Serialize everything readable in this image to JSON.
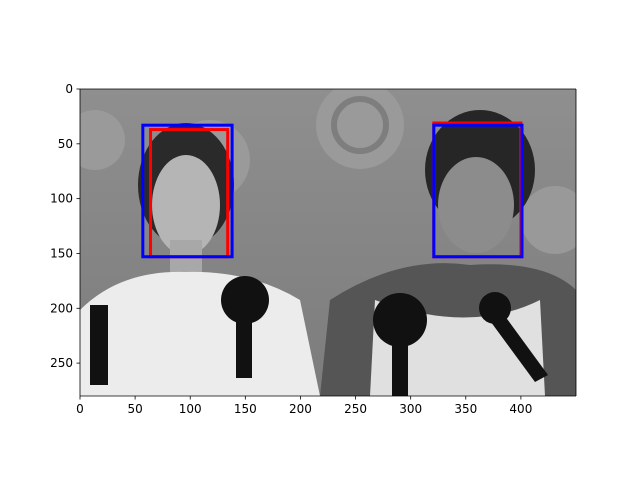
{
  "chart_data": {
    "type": "image",
    "title": "",
    "xlabel": "",
    "ylabel": "",
    "xlim": [
      0,
      450
    ],
    "ylim": [
      280,
      0
    ],
    "xticks": [
      0,
      50,
      100,
      150,
      200,
      250,
      300,
      350,
      400
    ],
    "yticks": [
      0,
      50,
      100,
      150,
      200,
      250
    ],
    "grid": false,
    "image": {
      "description_free": true,
      "grayscale": true
    },
    "series": [
      {
        "color": "#ff0000",
        "boxes": [
          {
            "x0": 64,
            "y0": 37,
            "x1": 134,
            "y1": 153
          },
          {
            "x0": 321,
            "y0": 31,
            "x1": 400,
            "y1": 153
          }
        ]
      },
      {
        "color": "#0000ff",
        "boxes": [
          {
            "x0": 57,
            "y0": 33,
            "x1": 138,
            "y1": 153
          },
          {
            "x0": 321,
            "y0": 33,
            "x1": 401,
            "y1": 153
          }
        ]
      }
    ]
  }
}
